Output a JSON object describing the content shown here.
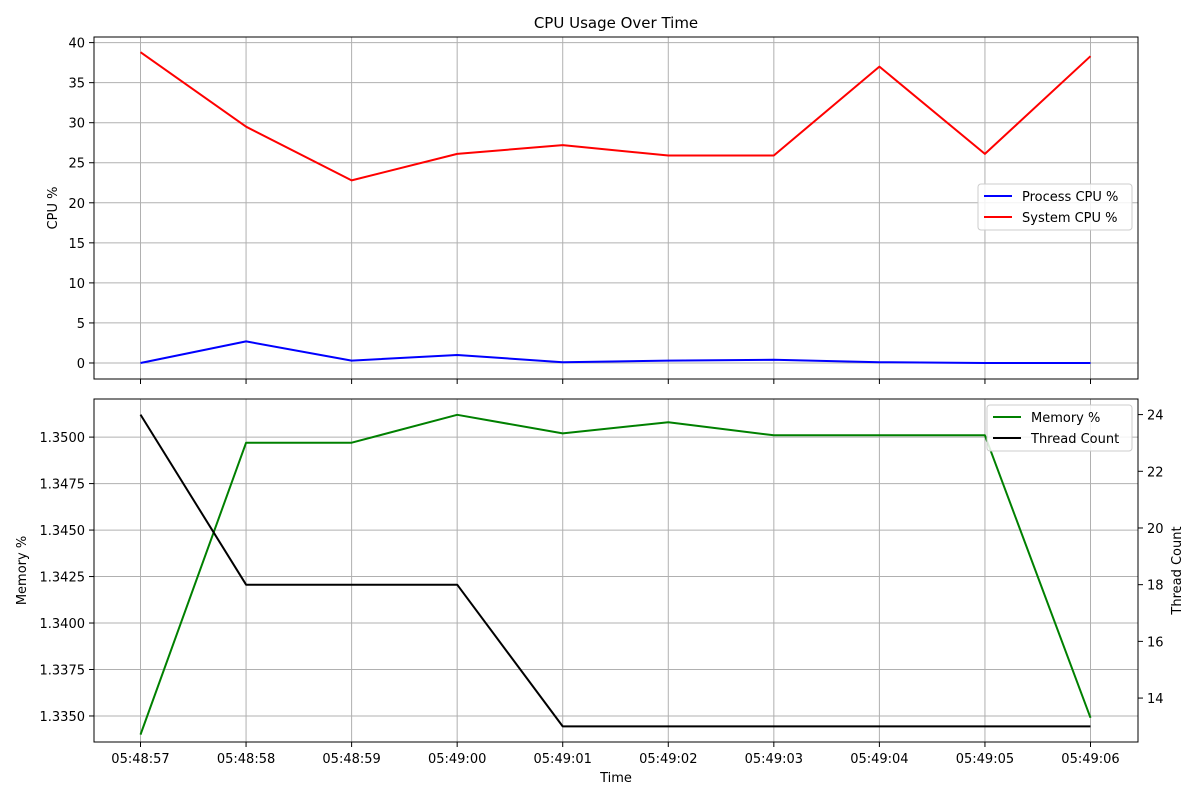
{
  "chart_data": [
    {
      "type": "line",
      "title": "CPU Usage Over Time",
      "xlabel": "",
      "ylabel": "CPU %",
      "ylim": [
        -2,
        40.7
      ],
      "yticks": [
        "0",
        "5",
        "10",
        "15",
        "20",
        "25",
        "30",
        "35",
        "40"
      ],
      "x": [
        "05:48:57",
        "05:48:58",
        "05:48:59",
        "05:49:00",
        "05:49:01",
        "05:49:02",
        "05:49:03",
        "05:49:04",
        "05:49:05",
        "05:49:06"
      ],
      "grid": true,
      "legend_position": "center-right",
      "series": [
        {
          "name": "Process CPU %",
          "color": "#0000ff",
          "values": [
            0.0,
            2.7,
            0.3,
            1.0,
            0.1,
            0.3,
            0.4,
            0.1,
            0.0,
            0.0
          ]
        },
        {
          "name": "System CPU %",
          "color": "#ff0000",
          "values": [
            38.8,
            29.5,
            22.8,
            26.1,
            27.2,
            25.9,
            25.9,
            37.0,
            26.1,
            38.3
          ]
        }
      ]
    },
    {
      "type": "line",
      "title": "",
      "xlabel": "Time",
      "ylabel": "Memory %",
      "y2label": "Thread Count",
      "ylim": [
        1.3336,
        1.35205
      ],
      "yticks": [
        "1.3350",
        "1.3375",
        "1.3400",
        "1.3425",
        "1.3450",
        "1.3475",
        "1.3500"
      ],
      "y2lim": [
        12.45,
        24.55
      ],
      "y2ticks": [
        "14",
        "16",
        "18",
        "20",
        "22",
        "24"
      ],
      "x": [
        "05:48:57",
        "05:48:58",
        "05:48:59",
        "05:49:00",
        "05:49:01",
        "05:49:02",
        "05:49:03",
        "05:49:04",
        "05:49:05",
        "05:49:06"
      ],
      "grid": true,
      "legend_position": "top-right",
      "series": [
        {
          "name": "Memory %",
          "color": "#008000",
          "axis": "left",
          "values": [
            1.334,
            1.3497,
            1.3497,
            1.3512,
            1.3502,
            1.3508,
            1.3501,
            1.3501,
            1.3501,
            1.3349
          ]
        },
        {
          "name": "Thread Count",
          "color": "#000000",
          "axis": "right",
          "values": [
            24,
            18,
            18,
            18,
            13,
            13,
            13,
            13,
            13,
            13
          ]
        }
      ]
    }
  ]
}
